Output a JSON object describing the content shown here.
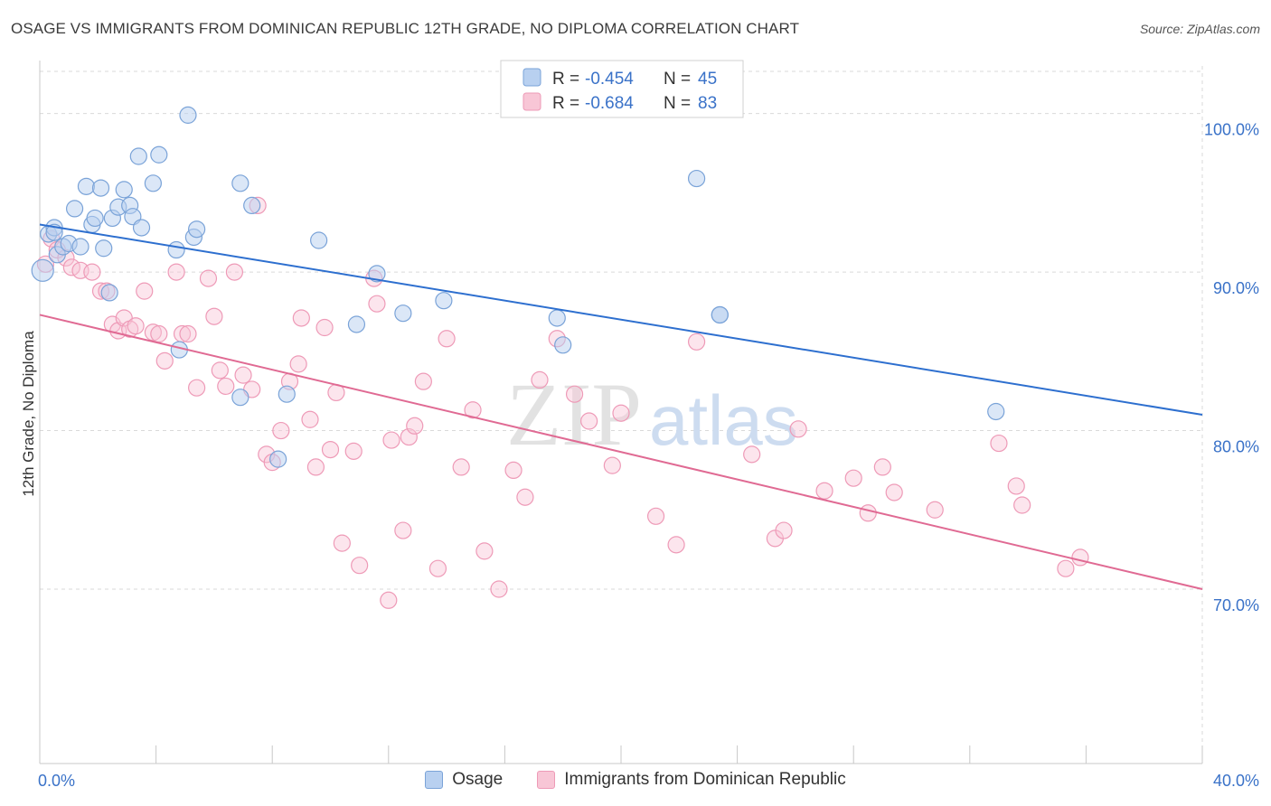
{
  "header": {
    "title": "OSAGE VS IMMIGRANTS FROM DOMINICAN REPUBLIC 12TH GRADE, NO DIPLOMA CORRELATION CHART",
    "source": "Source: ZipAtlas.com"
  },
  "watermark": {
    "zip": "ZIP",
    "atlas": "atlas"
  },
  "stats_legend": [
    {
      "r_label": "R =",
      "r_value": "-0.454",
      "n_label": "N =",
      "n_value": "45"
    },
    {
      "r_label": "R =",
      "r_value": "-0.684",
      "n_label": "N =",
      "n_value": "83"
    }
  ],
  "colors": {
    "osage_fill": "#b8d0f0",
    "osage_stroke": "#7aa3d8",
    "osage_line": "#2d6fcf",
    "dom_fill": "#f8c6d6",
    "dom_stroke": "#ee9ab7",
    "dom_line": "#e06a93",
    "axis_text": "#3a72c8",
    "grid": "#d9d9d9"
  },
  "chart_data": {
    "type": "scatter",
    "xlabel": "",
    "ylabel": "12th Grade, No Diploma",
    "xlim": [
      0,
      40
    ],
    "ylim": [
      59,
      103
    ],
    "x_tick_labels": [
      {
        "value": 0,
        "label": "0.0%"
      },
      {
        "value": 40,
        "label": "40.0%"
      }
    ],
    "y_tick_labels": [
      {
        "value": 100,
        "label": "100.0%"
      },
      {
        "value": 90,
        "label": "90.0%"
      },
      {
        "value": 80,
        "label": "80.0%"
      },
      {
        "value": 70,
        "label": "70.0%"
      }
    ],
    "grid": true,
    "legend_position": "top-center",
    "series": [
      {
        "name": "Osage",
        "r": -0.454,
        "n": 45,
        "trend": [
          [
            0,
            93.0
          ],
          [
            40,
            81.0
          ]
        ],
        "points": [
          [
            0.1,
            90.1
          ],
          [
            0.3,
            92.4
          ],
          [
            0.5,
            92.8
          ],
          [
            0.5,
            92.5
          ],
          [
            0.6,
            91.1
          ],
          [
            0.8,
            91.6
          ],
          [
            1.0,
            91.8
          ],
          [
            1.2,
            94.0
          ],
          [
            1.4,
            91.6
          ],
          [
            1.6,
            95.4
          ],
          [
            1.8,
            93.0
          ],
          [
            1.9,
            93.4
          ],
          [
            2.1,
            95.3
          ],
          [
            2.2,
            91.5
          ],
          [
            2.4,
            88.7
          ],
          [
            2.5,
            93.4
          ],
          [
            2.7,
            94.1
          ],
          [
            2.9,
            95.2
          ],
          [
            3.1,
            94.2
          ],
          [
            3.2,
            93.5
          ],
          [
            3.4,
            97.3
          ],
          [
            3.5,
            92.8
          ],
          [
            3.9,
            95.6
          ],
          [
            4.1,
            97.4
          ],
          [
            4.7,
            91.4
          ],
          [
            4.8,
            85.1
          ],
          [
            5.1,
            99.9
          ],
          [
            5.3,
            92.2
          ],
          [
            5.4,
            92.7
          ],
          [
            6.9,
            95.6
          ],
          [
            6.9,
            82.1
          ],
          [
            7.3,
            94.2
          ],
          [
            8.2,
            78.2
          ],
          [
            8.5,
            82.3
          ],
          [
            9.6,
            92.0
          ],
          [
            10.9,
            86.7
          ],
          [
            11.6,
            89.9
          ],
          [
            12.5,
            87.4
          ],
          [
            13.9,
            88.2
          ],
          [
            17.8,
            87.1
          ],
          [
            18.0,
            85.4
          ],
          [
            22.6,
            95.9
          ],
          [
            23.4,
            87.3
          ],
          [
            32.9,
            81.2
          ],
          [
            23.4,
            87.3
          ]
        ]
      },
      {
        "name": "Immigrants from Dominican Republic",
        "r": -0.684,
        "n": 83,
        "trend": [
          [
            0,
            87.3
          ],
          [
            40,
            70.0
          ]
        ],
        "points": [
          [
            0.2,
            90.5
          ],
          [
            0.4,
            92.1
          ],
          [
            0.6,
            91.4
          ],
          [
            0.9,
            90.9
          ],
          [
            1.1,
            90.3
          ],
          [
            1.4,
            90.1
          ],
          [
            1.8,
            90.0
          ],
          [
            2.1,
            88.8
          ],
          [
            2.3,
            88.8
          ],
          [
            2.5,
            86.7
          ],
          [
            2.7,
            86.3
          ],
          [
            2.9,
            87.1
          ],
          [
            3.1,
            86.4
          ],
          [
            3.3,
            86.6
          ],
          [
            3.6,
            88.8
          ],
          [
            3.9,
            86.2
          ],
          [
            4.1,
            86.1
          ],
          [
            4.3,
            84.4
          ],
          [
            4.7,
            90.0
          ],
          [
            4.9,
            86.1
          ],
          [
            5.1,
            86.1
          ],
          [
            5.4,
            82.7
          ],
          [
            5.8,
            89.6
          ],
          [
            6.0,
            87.2
          ],
          [
            6.2,
            83.8
          ],
          [
            6.4,
            82.8
          ],
          [
            6.7,
            90.0
          ],
          [
            7.0,
            83.5
          ],
          [
            7.3,
            82.6
          ],
          [
            7.5,
            94.2
          ],
          [
            7.8,
            78.5
          ],
          [
            8.0,
            78.0
          ],
          [
            8.3,
            80.0
          ],
          [
            8.6,
            83.1
          ],
          [
            8.9,
            84.2
          ],
          [
            9.0,
            87.1
          ],
          [
            9.3,
            80.7
          ],
          [
            9.5,
            77.7
          ],
          [
            9.8,
            86.5
          ],
          [
            10.0,
            78.8
          ],
          [
            10.2,
            82.4
          ],
          [
            10.4,
            72.9
          ],
          [
            10.8,
            78.7
          ],
          [
            11.0,
            71.5
          ],
          [
            11.5,
            89.6
          ],
          [
            11.6,
            88.0
          ],
          [
            12.0,
            69.3
          ],
          [
            12.1,
            79.4
          ],
          [
            12.5,
            73.7
          ],
          [
            12.7,
            79.6
          ],
          [
            12.9,
            80.3
          ],
          [
            13.2,
            83.1
          ],
          [
            13.7,
            71.3
          ],
          [
            14.0,
            85.8
          ],
          [
            14.5,
            77.7
          ],
          [
            14.9,
            81.3
          ],
          [
            15.3,
            72.4
          ],
          [
            15.8,
            70.0
          ],
          [
            16.3,
            77.5
          ],
          [
            16.7,
            75.8
          ],
          [
            17.2,
            83.2
          ],
          [
            17.8,
            85.8
          ],
          [
            18.4,
            82.3
          ],
          [
            18.9,
            80.6
          ],
          [
            19.7,
            77.8
          ],
          [
            20.0,
            81.1
          ],
          [
            21.2,
            74.6
          ],
          [
            21.9,
            72.8
          ],
          [
            22.6,
            85.6
          ],
          [
            24.5,
            78.5
          ],
          [
            25.3,
            73.2
          ],
          [
            25.6,
            73.7
          ],
          [
            26.1,
            80.1
          ],
          [
            27.0,
            76.2
          ],
          [
            28.0,
            77.0
          ],
          [
            28.5,
            74.8
          ],
          [
            29.0,
            77.7
          ],
          [
            29.4,
            76.1
          ],
          [
            30.8,
            75.0
          ],
          [
            33.0,
            79.2
          ],
          [
            33.6,
            76.5
          ],
          [
            33.8,
            75.3
          ],
          [
            35.3,
            71.3
          ],
          [
            35.8,
            72.0
          ]
        ]
      }
    ]
  }
}
